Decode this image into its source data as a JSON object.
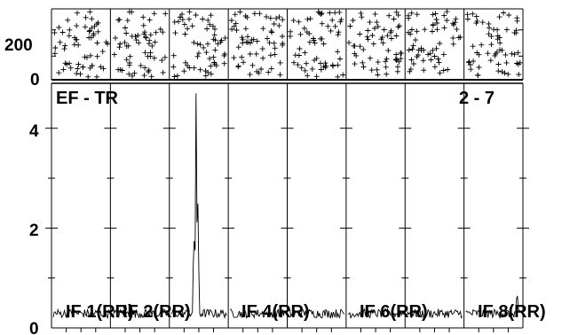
{
  "chart_data": {
    "type": "scatter+line",
    "baseline_label": "EF - TR",
    "baseline_index": "2 - 7",
    "phase_panel": {
      "y_ticks": [
        "200",
        "0"
      ],
      "ylim": [
        -180,
        360
      ]
    },
    "amplitude_panel": {
      "y_ticks": [
        "4",
        "2",
        "0"
      ],
      "ylim": [
        0,
        4.9
      ]
    },
    "if_labels": [
      "IF 1(RR)",
      "IF 2(RR)",
      "IF 4(RR)",
      "IF 6(RR)",
      "IF 8(RR)"
    ],
    "n_subbands": 8,
    "spike": {
      "subband": 3,
      "peak_amplitude": 4.7
    }
  }
}
